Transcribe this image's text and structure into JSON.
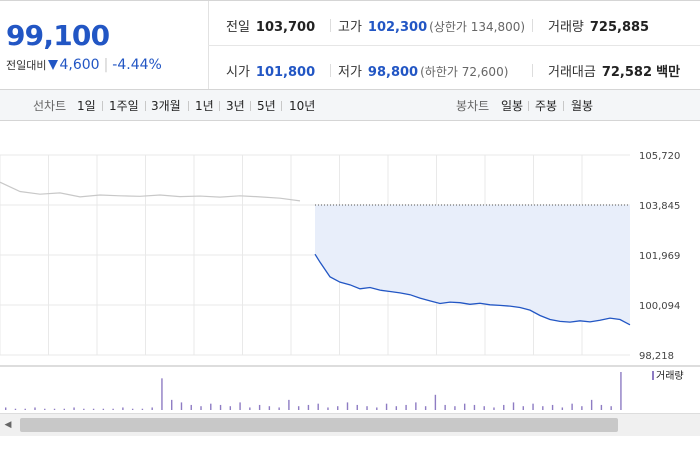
{
  "header": {
    "price": "99,100",
    "change_label": "전일대비",
    "change": "4,600",
    "change_rate": "-4.44%",
    "stats": {
      "prev_label": "전일",
      "prev": "103,700",
      "high_label": "고가",
      "high": "102,300",
      "high_sub": "(상한가 134,800)",
      "volume_label": "거래량",
      "volume": "725,885",
      "open_label": "시가",
      "open": "101,800",
      "low_label": "저가",
      "low": "98,800",
      "low_sub": "(하한가 72,600)",
      "amount_label": "거래대금",
      "amount": "72,582",
      "amount_unit": "백만"
    }
  },
  "toolbar": {
    "line_label": "선차트",
    "line_items": [
      "1일",
      "1주일",
      "3개월",
      "1년",
      "3년",
      "5년",
      "10년"
    ],
    "active": "1일",
    "candle_label": "봉차트",
    "candle_items": [
      "일봉",
      "주봉",
      "월봉"
    ]
  },
  "colors": {
    "down": "#2256c4",
    "prev_line": "#c8c8c8",
    "fill": "#e8eefa",
    "volume": "#8e7cc3"
  },
  "scroll": {
    "left_icon": "arrow-left-icon",
    "right_icon": "arrow-right-icon"
  },
  "chart_data": {
    "type": "line",
    "y_ticks": [
      "105,720",
      "103,845",
      "101,969",
      "100,094",
      "98,218"
    ],
    "ylim": [
      98218,
      105720
    ],
    "reference_value": 103845,
    "volume_label": "거래량",
    "grid": true,
    "series": [
      {
        "name": "",
        "x": [
          0,
          4,
          8,
          12,
          16,
          20,
          24,
          28,
          32,
          36,
          40,
          44,
          48,
          52,
          56,
          60
        ],
        "values": [
          104700,
          104350,
          104250,
          104300,
          104150,
          104220,
          104190,
          104170,
          104220,
          104160,
          104180,
          104140,
          104190,
          104150,
          104100,
          104000
        ]
      },
      {
        "name": "",
        "x": [
          63,
          64,
          66,
          68,
          70,
          72,
          74,
          76,
          78,
          80,
          82,
          84,
          86,
          88,
          90,
          92,
          94,
          96,
          98,
          100,
          102,
          104,
          106,
          108,
          110,
          112,
          114,
          116,
          118,
          120,
          122,
          124,
          125,
          126
        ],
        "values": [
          102000,
          101700,
          101150,
          100950,
          100850,
          100700,
          100750,
          100650,
          100600,
          100550,
          100480,
          100350,
          100250,
          100150,
          100200,
          100180,
          100120,
          100160,
          100100,
          100080,
          100050,
          100000,
          99900,
          99700,
          99550,
          99480,
          99450,
          99500,
          99460,
          99520,
          99600,
          99550,
          99450,
          99350
        ]
      }
    ],
    "volume_values": [
      2,
      1,
      1,
      2,
      1,
      1,
      1,
      2,
      1,
      1,
      1,
      1,
      2,
      1,
      1,
      2,
      25,
      8,
      6,
      4,
      3,
      5,
      4,
      3,
      6,
      2,
      4,
      3,
      2,
      8,
      3,
      4,
      5,
      2,
      3,
      6,
      4,
      3,
      2,
      5,
      3,
      4,
      6,
      3,
      12,
      4,
      3,
      5,
      4,
      3,
      2,
      4,
      6,
      3,
      5,
      3,
      4,
      2,
      5,
      3,
      8,
      4,
      3,
      30
    ]
  }
}
